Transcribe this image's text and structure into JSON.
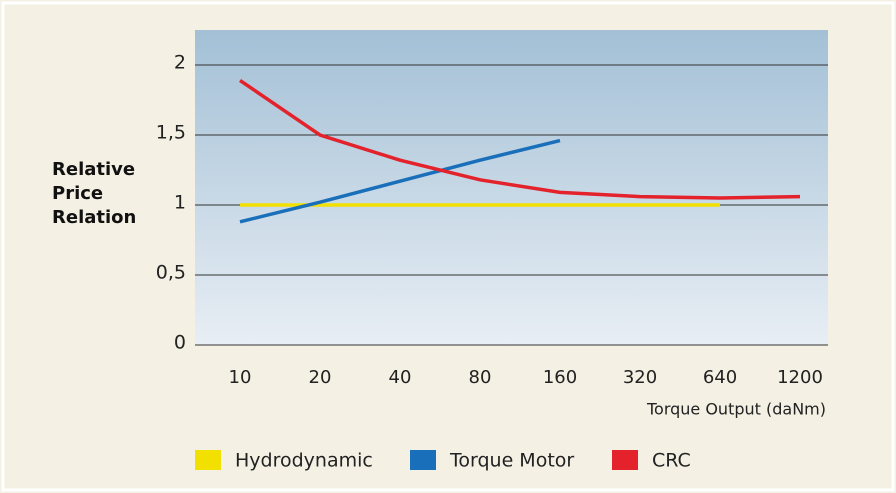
{
  "chart_data": {
    "type": "line",
    "ylabel": "Relative Price Relation",
    "xlabel": "Torque Output (daNm)",
    "categories": [
      "10",
      "20",
      "40",
      "80",
      "160",
      "320",
      "640",
      "1200"
    ],
    "series": [
      {
        "name": "Hydrodynamic",
        "color": "#f2e000",
        "values": [
          1.0,
          1.0,
          1.0,
          1.0,
          1.0,
          1.0,
          1.0,
          null
        ]
      },
      {
        "name": "Torque Motor",
        "color": "#1a6fba",
        "values": [
          0.88,
          1.02,
          1.17,
          1.32,
          1.46,
          null,
          null,
          null
        ]
      },
      {
        "name": "CRC",
        "color": "#e3222b",
        "values": [
          1.89,
          1.5,
          1.32,
          1.18,
          1.09,
          1.06,
          1.05,
          1.06
        ]
      }
    ],
    "ylim": [
      0,
      2.25
    ],
    "yticks": [
      0,
      {
        "value": 0.5,
        "label": "0,5"
      },
      1,
      {
        "value": 1.5,
        "label": "1,5"
      },
      2
    ],
    "grid": true
  }
}
